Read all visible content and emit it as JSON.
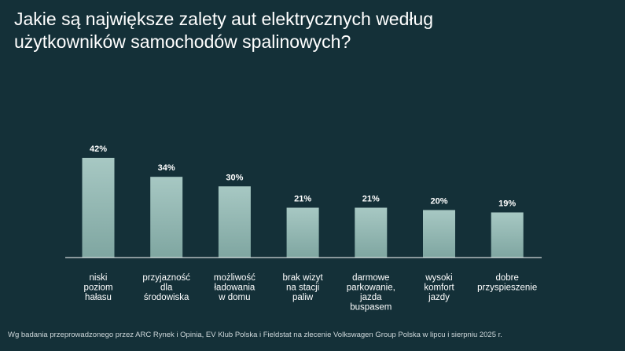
{
  "title": "Jakie są największe zalety aut elektrycznych według\nużytkowników samochodów spalinowych?",
  "footnote": "Wg badania przeprowadzonego przez ARC Rynek i Opinia, EV Klub Polska i Fieldstat na zlecenie Volkswagen Group Polska w lipcu i sierpniu 2025 r.",
  "colors": {
    "background": "#143038",
    "bar_top": "#a7c8c3",
    "bar_bottom": "#7fa6a1",
    "axis": "#ffffff"
  },
  "chart_data": {
    "type": "bar",
    "categories": [
      "niski poziom hałasu",
      "przyjazność dla środowiska",
      "możliwość ładowania w domu",
      "brak wizyt na stacji paliw",
      "darmowe parkowanie, jazda buspasem",
      "wysoki komfort jazdy",
      "dobre przyspieszenie"
    ],
    "category_lines": [
      [
        "niski",
        "poziom",
        "hałasu"
      ],
      [
        "przyjazność",
        "dla",
        "środowiska"
      ],
      [
        "możliwość",
        "ładowania",
        "w domu"
      ],
      [
        "brak wizyt",
        "na stacji",
        "paliw"
      ],
      [
        "darmowe",
        "parkowanie,",
        "jazda",
        "buspasem"
      ],
      [
        "wysoki",
        "komfort",
        "jazdy"
      ],
      [
        "dobre",
        "przyspieszenie"
      ]
    ],
    "values": [
      42,
      34,
      30,
      21,
      21,
      20,
      19
    ],
    "value_labels": [
      "42%",
      "34%",
      "30%",
      "21%",
      "21%",
      "20%",
      "19%"
    ],
    "unit": "%",
    "ylim": [
      0,
      42
    ],
    "grid": false,
    "legend": "none"
  }
}
